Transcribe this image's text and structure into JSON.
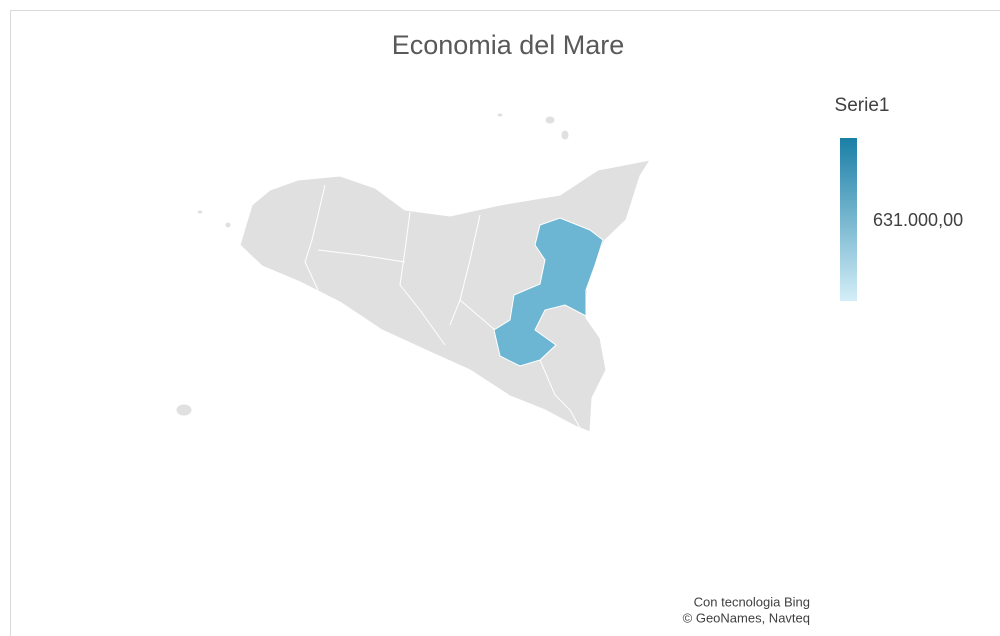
{
  "chart_data": {
    "type": "map",
    "title": "Economia del Mare",
    "series": [
      {
        "name": "Serie1",
        "values": [
          631000
        ],
        "value_labels": [
          "631.000,00"
        ],
        "color": "#6cb6d3"
      }
    ],
    "color_scale": [
      "#d4eef8",
      "#1a7fa6"
    ],
    "attribution": [
      "Con tecnologia Bing",
      "© GeoNames, Navteq"
    ]
  }
}
